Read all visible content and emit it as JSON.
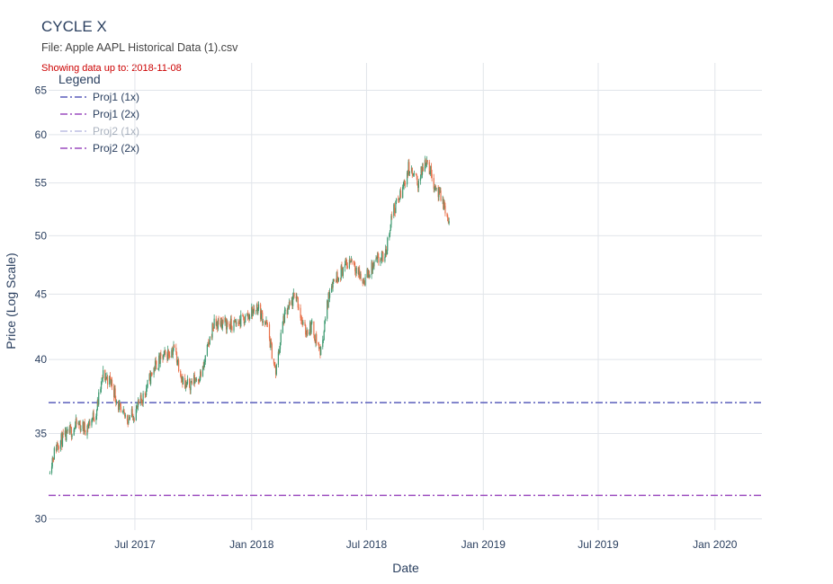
{
  "chart_data": {
    "type": "candlestick",
    "title": "CYCLE X",
    "subtitle": "File: Apple AAPL Historical Data (1).csv",
    "note": "Showing data up to: 2018-11-08",
    "xlabel": "Date",
    "ylabel": "Price (Log Scale)",
    "y_scale": "log",
    "ylim": [
      29.4,
      68.3
    ],
    "xlim": [
      "2017-02-15",
      "2020-03-15"
    ],
    "yticks": [
      30,
      35,
      40,
      45,
      50,
      55,
      60,
      65
    ],
    "xticks": [
      {
        "date": "2017-07-01",
        "label": "Jul 2017"
      },
      {
        "date": "2018-01-01",
        "label": "Jan 2018"
      },
      {
        "date": "2018-07-01",
        "label": "Jul 2018"
      },
      {
        "date": "2019-01-01",
        "label": "Jan 2019"
      },
      {
        "date": "2019-07-01",
        "label": "Jul 2019"
      },
      {
        "date": "2020-01-01",
        "label": "Jan 2020"
      }
    ],
    "grid": true,
    "legend_position": "top-left",
    "legend_title": "Legend",
    "increasing_color": "#3d9970",
    "decreasing_color": "#e8714a",
    "price_path": [
      [
        "2017-02-17",
        33.0
      ],
      [
        "2017-03-01",
        34.4
      ],
      [
        "2017-03-15",
        34.8
      ],
      [
        "2017-04-01",
        35.6
      ],
      [
        "2017-04-15",
        35.3
      ],
      [
        "2017-05-01",
        36.4
      ],
      [
        "2017-05-12",
        38.9
      ],
      [
        "2017-05-25",
        38.4
      ],
      [
        "2017-06-09",
        36.2
      ],
      [
        "2017-06-20",
        36.0
      ],
      [
        "2017-07-01",
        36.3
      ],
      [
        "2017-07-15",
        37.5
      ],
      [
        "2017-08-01",
        39.5
      ],
      [
        "2017-08-15",
        40.2
      ],
      [
        "2017-09-01",
        40.8
      ],
      [
        "2017-09-18",
        38.0
      ],
      [
        "2017-10-01",
        38.5
      ],
      [
        "2017-10-15",
        39.0
      ],
      [
        "2017-11-01",
        42.5
      ],
      [
        "2017-11-15",
        42.8
      ],
      [
        "2017-12-01",
        42.5
      ],
      [
        "2017-12-20",
        43.0
      ],
      [
        "2018-01-10",
        44.0
      ],
      [
        "2018-01-25",
        42.5
      ],
      [
        "2018-02-08",
        39.0
      ],
      [
        "2018-02-20",
        43.0
      ],
      [
        "2018-03-12",
        45.0
      ],
      [
        "2018-03-25",
        42.0
      ],
      [
        "2018-04-05",
        42.5
      ],
      [
        "2018-04-20",
        40.5
      ],
      [
        "2018-05-05",
        45.8
      ],
      [
        "2018-05-20",
        46.8
      ],
      [
        "2018-06-08",
        48.0
      ],
      [
        "2018-06-25",
        46.0
      ],
      [
        "2018-07-15",
        47.6
      ],
      [
        "2018-07-31",
        48.3
      ],
      [
        "2018-08-10",
        52.0
      ],
      [
        "2018-08-25",
        54.0
      ],
      [
        "2018-09-05",
        56.5
      ],
      [
        "2018-09-20",
        55.0
      ],
      [
        "2018-10-03",
        57.5
      ],
      [
        "2018-10-18",
        54.5
      ],
      [
        "2018-10-30",
        53.0
      ],
      [
        "2018-11-08",
        51.0
      ]
    ],
    "series": [
      {
        "name": "Proj1 (1x)",
        "value": 37.0,
        "color": "#5a5dbb",
        "opacity": 1.0
      },
      {
        "name": "Proj1 (2x)",
        "value": 31.3,
        "color": "#9b4bbf",
        "opacity": 1.0
      },
      {
        "name": "Proj2 (1x)",
        "value": null,
        "color": "#5a5dbb",
        "opacity": 0.4
      },
      {
        "name": "Proj2 (2x)",
        "value": null,
        "color": "#9b4bbf",
        "opacity": 1.0
      }
    ]
  }
}
